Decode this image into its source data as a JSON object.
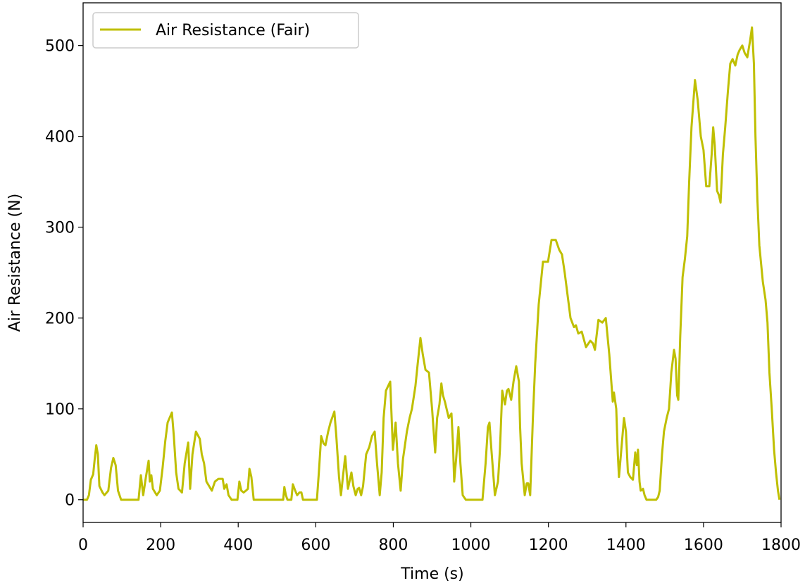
{
  "chart_data": {
    "type": "line",
    "xlabel": "Time (s)",
    "ylabel": "Air Resistance (N)",
    "x": [
      0,
      10,
      15,
      20,
      26,
      30,
      34,
      38,
      42,
      50,
      55,
      65,
      72,
      78,
      84,
      90,
      98,
      143,
      149,
      155,
      162,
      169,
      172,
      176,
      180,
      190,
      198,
      205,
      212,
      218,
      229,
      234,
      240,
      246,
      255,
      262,
      271,
      276,
      282,
      291,
      301,
      306,
      312,
      318,
      325,
      332,
      340,
      349,
      360,
      364,
      370,
      375,
      383,
      398,
      403,
      408,
      414,
      420,
      425,
      429,
      434,
      440,
      516,
      519,
      523,
      527,
      537,
      541,
      547,
      552,
      558,
      563,
      567,
      603,
      608,
      614,
      620,
      625,
      632,
      638,
      648,
      653,
      660,
      665,
      670,
      676,
      683,
      692,
      697,
      703,
      708,
      712,
      717,
      722,
      730,
      738,
      745,
      752,
      758,
      765,
      770,
      775,
      781,
      792,
      799,
      806,
      812,
      819,
      825,
      835,
      842,
      848,
      857,
      863,
      870,
      876,
      883,
      892,
      900,
      908,
      913,
      919,
      924,
      928,
      933,
      943,
      950,
      954,
      957,
      962,
      968,
      973,
      979,
      987,
      1030,
      1038,
      1044,
      1048,
      1053,
      1062,
      1070,
      1075,
      1081,
      1088,
      1093,
      1097,
      1104,
      1110,
      1117,
      1124,
      1127,
      1131,
      1139,
      1144,
      1148,
      1153,
      1160,
      1166,
      1175,
      1186,
      1199,
      1208,
      1219,
      1228,
      1235,
      1242,
      1248,
      1257,
      1266,
      1271,
      1277,
      1286,
      1297,
      1308,
      1315,
      1320,
      1329,
      1339,
      1348,
      1357,
      1366,
      1369,
      1375,
      1379,
      1382,
      1388,
      1395,
      1400,
      1405,
      1411,
      1418,
      1424,
      1428,
      1431,
      1435,
      1438,
      1444,
      1448,
      1453,
      1478,
      1483,
      1487,
      1493,
      1498,
      1505,
      1511,
      1517,
      1524,
      1528,
      1532,
      1535,
      1540,
      1546,
      1552,
      1558,
      1563,
      1569,
      1578,
      1585,
      1593,
      1600,
      1607,
      1615,
      1621,
      1625,
      1629,
      1635,
      1640,
      1644,
      1650,
      1656,
      1663,
      1669,
      1675,
      1682,
      1688,
      1693,
      1700,
      1706,
      1713,
      1720,
      1725,
      1730,
      1734,
      1739,
      1744,
      1753,
      1760,
      1765,
      1770,
      1776,
      1782,
      1787,
      1792,
      1796
    ],
    "series": [
      {
        "name": "Air Resistance (Fair)",
        "color": "#bfbf00",
        "values": [
          0,
          0,
          5,
          22,
          28,
          45,
          60,
          50,
          15,
          8,
          5,
          10,
          35,
          46,
          38,
          10,
          0,
          0,
          27,
          5,
          25,
          43,
          20,
          27,
          12,
          5,
          10,
          35,
          65,
          85,
          96,
          70,
          30,
          12,
          8,
          40,
          63,
          12,
          50,
          75,
          67,
          50,
          40,
          20,
          15,
          10,
          20,
          23,
          23,
          12,
          17,
          5,
          0,
          0,
          20,
          10,
          8,
          10,
          12,
          34,
          25,
          0,
          0,
          14,
          5,
          0,
          0,
          17,
          10,
          5,
          8,
          8,
          0,
          0,
          30,
          70,
          62,
          60,
          75,
          85,
          97,
          70,
          25,
          5,
          25,
          48,
          12,
          30,
          15,
          5,
          12,
          13,
          5,
          15,
          50,
          58,
          70,
          75,
          40,
          5,
          30,
          90,
          120,
          130,
          55,
          85,
          40,
          10,
          45,
          75,
          90,
          100,
          125,
          150,
          178,
          160,
          143,
          140,
          100,
          52,
          90,
          105,
          128,
          115,
          108,
          90,
          95,
          60,
          20,
          45,
          80,
          40,
          5,
          0,
          0,
          40,
          80,
          85,
          55,
          5,
          20,
          55,
          120,
          105,
          120,
          122,
          110,
          130,
          147,
          130,
          80,
          40,
          5,
          18,
          18,
          5,
          90,
          150,
          215,
          262,
          262,
          286,
          286,
          275,
          270,
          250,
          230,
          200,
          190,
          192,
          183,
          185,
          168,
          175,
          172,
          165,
          198,
          195,
          200,
          160,
          108,
          118,
          100,
          50,
          25,
          55,
          90,
          75,
          30,
          25,
          22,
          52,
          38,
          55,
          20,
          10,
          12,
          5,
          0,
          0,
          3,
          10,
          50,
          75,
          90,
          100,
          140,
          165,
          155,
          115,
          110,
          180,
          245,
          265,
          290,
          350,
          410,
          462,
          440,
          400,
          385,
          345,
          345,
          380,
          410,
          390,
          340,
          335,
          327,
          380,
          410,
          450,
          480,
          485,
          478,
          490,
          495,
          500,
          492,
          487,
          505,
          520,
          480,
          400,
          330,
          280,
          240,
          220,
          195,
          140,
          100,
          55,
          30,
          10,
          0
        ]
      }
    ],
    "xlim": [
      0,
      1800
    ],
    "ylim": [
      -25,
      547
    ],
    "xticks": [
      0,
      200,
      400,
      600,
      800,
      1000,
      1200,
      1400,
      1600,
      1800
    ],
    "yticks": [
      0,
      100,
      200,
      300,
      400,
      500
    ],
    "legend": "upper left"
  }
}
